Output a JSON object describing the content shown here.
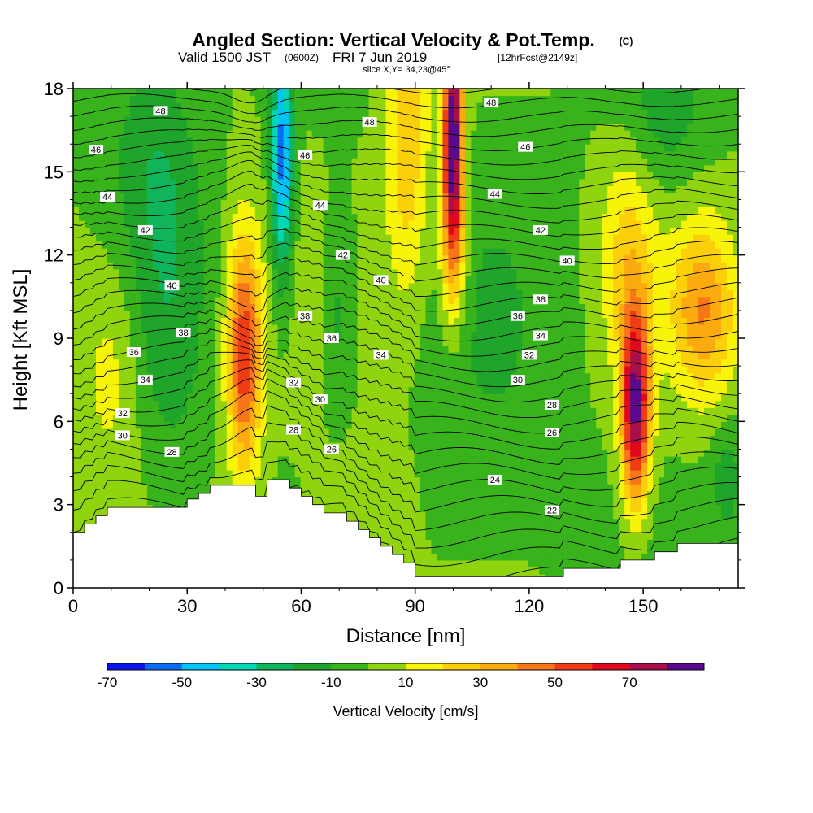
{
  "title": {
    "main": "Angled Section: Vertical Velocity & Pot.Temp.",
    "copyright": "(C)",
    "valid_prefix": "Valid 1500 JST",
    "valid_utc": "(0600Z)",
    "valid_date": "FRI 7 Jun 2019",
    "forecast": "[12hrFcst@2149z]",
    "slice": "slice X,Y= 34,23@45°"
  },
  "chart_data": {
    "type": "heatmap",
    "xlabel": "Distance [nm]",
    "ylabel": "Height [Kft MSL]",
    "xlim": [
      0,
      175
    ],
    "ylim": [
      0,
      18
    ],
    "xticks": [
      0,
      30,
      60,
      90,
      120,
      150
    ],
    "xtick_labels": [
      "0",
      "30",
      "60",
      "90",
      "120",
      "150"
    ],
    "yticks": [
      0,
      3,
      6,
      9,
      12,
      15,
      18
    ],
    "ytick_labels": [
      "0",
      "3",
      "6",
      "9",
      "12",
      "15",
      "18"
    ],
    "colorbar": {
      "title": "Vertical Velocity [cm/s]",
      "bounds": [
        -70,
        -60,
        -50,
        -40,
        -30,
        -20,
        -10,
        0,
        10,
        20,
        30,
        40,
        50,
        60,
        70,
        80
      ],
      "colors": [
        "#0a14f0",
        "#0a6cf5",
        "#00c4f5",
        "#00d8b4",
        "#10b45a",
        "#1fa52a",
        "#38b31c",
        "#8fd40f",
        "#f7f40a",
        "#fbd00a",
        "#fbab0f",
        "#f8761a",
        "#f03c14",
        "#e0081c",
        "#a8104a",
        "#5a0a8a"
      ],
      "tick_values": [
        -70,
        -50,
        -30,
        -10,
        10,
        30,
        50,
        70
      ],
      "tick_labels": [
        "-70",
        "-50",
        "-30",
        "-10",
        "10",
        "30",
        "50",
        "70"
      ]
    },
    "terrain_profile": [
      [
        0,
        2.0
      ],
      [
        3,
        2.0
      ],
      [
        3,
        2.3
      ],
      [
        6,
        2.3
      ],
      [
        6,
        2.6
      ],
      [
        9,
        2.6
      ],
      [
        9,
        2.9
      ],
      [
        21,
        2.9
      ],
      [
        21,
        2.9
      ],
      [
        30,
        2.9
      ],
      [
        30,
        3.2
      ],
      [
        33,
        3.2
      ],
      [
        33,
        3.4
      ],
      [
        36,
        3.4
      ],
      [
        36,
        3.7
      ],
      [
        48,
        3.7
      ],
      [
        48,
        3.3
      ],
      [
        51,
        3.3
      ],
      [
        51,
        3.9
      ],
      [
        57,
        3.9
      ],
      [
        57,
        3.6
      ],
      [
        60,
        3.6
      ],
      [
        60,
        3.3
      ],
      [
        63,
        3.3
      ],
      [
        63,
        3.0
      ],
      [
        66,
        3.0
      ],
      [
        66,
        2.7
      ],
      [
        72,
        2.7
      ],
      [
        72,
        2.4
      ],
      [
        75,
        2.4
      ],
      [
        75,
        2.1
      ],
      [
        78,
        2.1
      ],
      [
        78,
        1.8
      ],
      [
        81,
        1.8
      ],
      [
        81,
        1.5
      ],
      [
        84,
        1.5
      ],
      [
        84,
        1.2
      ],
      [
        87,
        1.2
      ],
      [
        87,
        0.9
      ],
      [
        90,
        0.9
      ],
      [
        90,
        0.4
      ],
      [
        129,
        0.4
      ],
      [
        129,
        0.7
      ],
      [
        144,
        0.7
      ],
      [
        144,
        1.0
      ],
      [
        153,
        1.0
      ],
      [
        153,
        1.3
      ],
      [
        159,
        1.3
      ],
      [
        159,
        1.6
      ],
      [
        175,
        1.6
      ]
    ],
    "updraft_cells": [
      {
        "x": 45,
        "y": 8.5,
        "sx": 3.2,
        "sy": 3.0,
        "w": 58
      },
      {
        "x": 100,
        "y": 17.0,
        "sx": 1.8,
        "sy": 3.0,
        "w": 80
      },
      {
        "x": 100,
        "y": 13.0,
        "sx": 2.5,
        "sy": 2.5,
        "w": 40
      },
      {
        "x": 148,
        "y": 6.5,
        "sx": 2.6,
        "sy": 2.4,
        "w": 82
      },
      {
        "x": 166,
        "y": 10.0,
        "sx": 6.0,
        "sy": 2.2,
        "w": 38
      },
      {
        "x": 88,
        "y": 16.0,
        "sx": 4.0,
        "sy": 4.0,
        "w": 28
      },
      {
        "x": 146,
        "y": 12.0,
        "sx": 5.0,
        "sy": 3.0,
        "w": 22
      },
      {
        "x": 10,
        "y": 8.0,
        "sx": 6.0,
        "sy": 3.0,
        "w": 15
      },
      {
        "x": 75,
        "y": 3.0,
        "sx": 9.0,
        "sy": 2.0,
        "w": 10
      }
    ],
    "downdraft_cells": [
      {
        "x": 55,
        "y": 15.5,
        "sx": 2.0,
        "sy": 3.0,
        "w": -55
      },
      {
        "x": 25,
        "y": 10.0,
        "sx": 7.0,
        "sy": 5.0,
        "w": -14
      },
      {
        "x": 70,
        "y": 10.0,
        "sx": 3.0,
        "sy": 3.0,
        "w": -15
      },
      {
        "x": 110,
        "y": 7.0,
        "sx": 14.0,
        "sy": 6.0,
        "w": -8
      },
      {
        "x": 155,
        "y": 17.0,
        "sx": 8.0,
        "sy": 2.0,
        "w": -15
      },
      {
        "x": 20,
        "y": 16.0,
        "sx": 8.0,
        "sy": 3.0,
        "w": -13
      },
      {
        "x": 172,
        "y": 4.0,
        "sx": 3.0,
        "sy": 1.5,
        "w": -15
      }
    ],
    "theta_contours": {
      "base_at_ground": 21,
      "contour_interval": 1,
      "labels": [
        {
          "x": 23,
          "y": 17.2,
          "v": "48"
        },
        {
          "x": 78,
          "y": 16.8,
          "v": "48"
        },
        {
          "x": 110,
          "y": 17.5,
          "v": "48"
        },
        {
          "x": 6,
          "y": 15.8,
          "v": "46"
        },
        {
          "x": 61,
          "y": 15.6,
          "v": "46"
        },
        {
          "x": 119,
          "y": 15.9,
          "v": "46"
        },
        {
          "x": 9,
          "y": 14.1,
          "v": "44"
        },
        {
          "x": 65,
          "y": 13.8,
          "v": "44"
        },
        {
          "x": 111,
          "y": 14.2,
          "v": "44"
        },
        {
          "x": 19,
          "y": 12.9,
          "v": "42"
        },
        {
          "x": 71,
          "y": 12.0,
          "v": "42"
        },
        {
          "x": 123,
          "y": 12.9,
          "v": "42"
        },
        {
          "x": 26,
          "y": 10.9,
          "v": "40"
        },
        {
          "x": 81,
          "y": 11.1,
          "v": "40"
        },
        {
          "x": 130,
          "y": 11.8,
          "v": "40"
        },
        {
          "x": 29,
          "y": 9.2,
          "v": "38"
        },
        {
          "x": 61,
          "y": 9.8,
          "v": "38"
        },
        {
          "x": 123,
          "y": 10.4,
          "v": "38"
        },
        {
          "x": 16,
          "y": 8.5,
          "v": "36"
        },
        {
          "x": 68,
          "y": 9.0,
          "v": "36"
        },
        {
          "x": 117,
          "y": 9.8,
          "v": "36"
        },
        {
          "x": 19,
          "y": 7.5,
          "v": "34"
        },
        {
          "x": 81,
          "y": 8.4,
          "v": "34"
        },
        {
          "x": 123,
          "y": 9.1,
          "v": "34"
        },
        {
          "x": 13,
          "y": 6.3,
          "v": "32"
        },
        {
          "x": 58,
          "y": 7.4,
          "v": "32"
        },
        {
          "x": 120,
          "y": 8.4,
          "v": "32"
        },
        {
          "x": 13,
          "y": 5.5,
          "v": "30"
        },
        {
          "x": 65,
          "y": 6.8,
          "v": "30"
        },
        {
          "x": 117,
          "y": 7.5,
          "v": "30"
        },
        {
          "x": 26,
          "y": 4.9,
          "v": "28"
        },
        {
          "x": 58,
          "y": 5.7,
          "v": "28"
        },
        {
          "x": 126,
          "y": 6.6,
          "v": "28"
        },
        {
          "x": 68,
          "y": 5.0,
          "v": "26"
        },
        {
          "x": 126,
          "y": 5.6,
          "v": "26"
        },
        {
          "x": 111,
          "y": 3.9,
          "v": "24"
        },
        {
          "x": 126,
          "y": 2.8,
          "v": "22"
        }
      ]
    }
  }
}
